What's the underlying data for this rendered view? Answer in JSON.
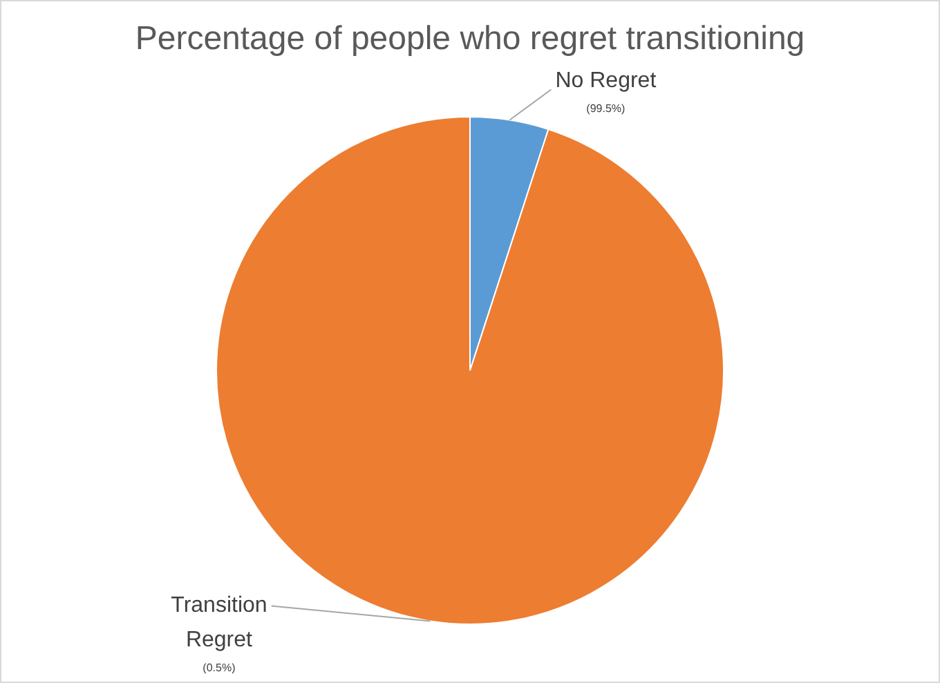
{
  "chart_data": {
    "type": "pie",
    "title": "Percentage of people who regret transitioning",
    "categories": [
      "No Regret",
      "Transition Regret"
    ],
    "values": [
      5,
      95
    ],
    "colors": [
      "#5b9bd5",
      "#ed7d31"
    ],
    "annotations": [
      "(99.5%)",
      "(0.5%)"
    ],
    "legend": false
  }
}
